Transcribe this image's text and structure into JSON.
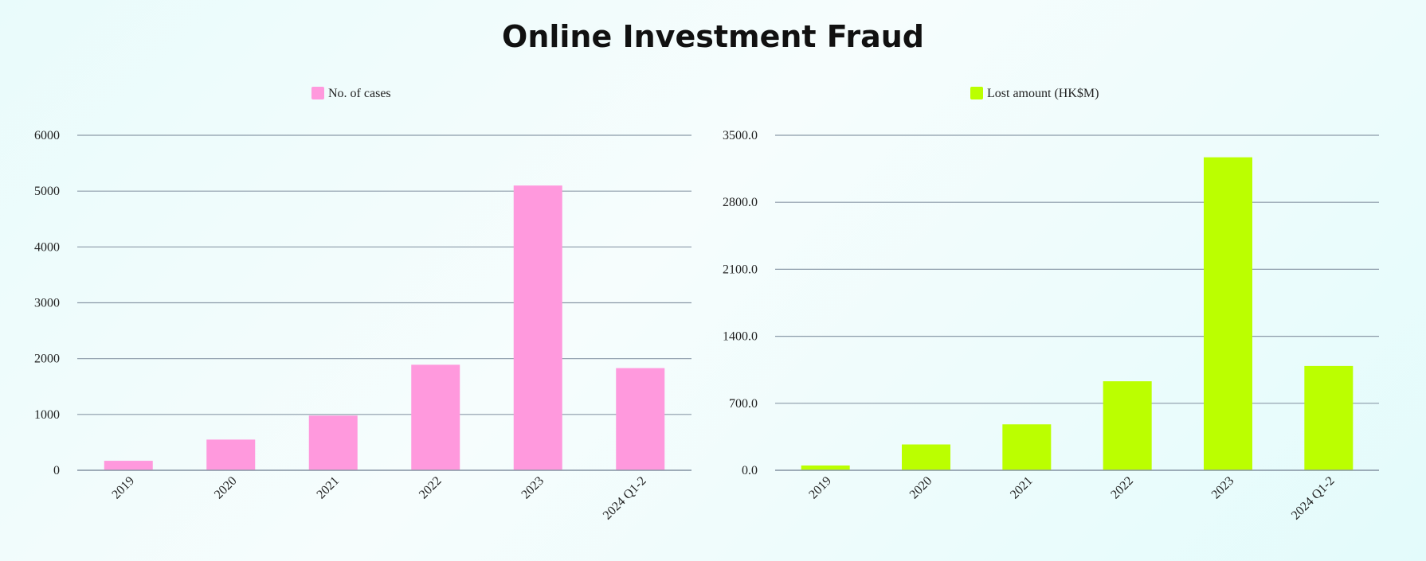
{
  "page": {
    "title": "Online Investment Fraud"
  },
  "chart_data": [
    {
      "type": "bar",
      "categories": [
        "2019",
        "2020",
        "2021",
        "2022",
        "2023",
        "2024 Q1-2"
      ],
      "series": [
        {
          "name": "No. of cases",
          "color": "#ff99dd",
          "values": [
            170,
            550,
            980,
            1890,
            5100,
            1830
          ]
        }
      ],
      "ylim": [
        0,
        6000
      ],
      "yticks": [
        "0",
        "1000",
        "2000",
        "3000",
        "4000",
        "5000",
        "6000"
      ],
      "ytick_values": [
        0,
        1000,
        2000,
        3000,
        4000,
        5000,
        6000
      ],
      "grid": true,
      "gridline_color": "#8b9aa8",
      "legend_position": "top"
    },
    {
      "type": "bar",
      "categories": [
        "2019",
        "2020",
        "2021",
        "2022",
        "2023",
        "2024 Q1-2"
      ],
      "series": [
        {
          "name": "Lost amount (HK$M)",
          "color": "#bbff00",
          "values": [
            50,
            270,
            480,
            930,
            3270,
            1090
          ]
        }
      ],
      "ylim": [
        0,
        3500
      ],
      "yticks": [
        "0.0",
        "700.0",
        "1400.0",
        "2100.0",
        "2800.0",
        "3500.0"
      ],
      "ytick_values": [
        0,
        700,
        1400,
        2100,
        2800,
        3500
      ],
      "grid": true,
      "gridline_color": "#8b9aa8",
      "legend_position": "top"
    }
  ]
}
